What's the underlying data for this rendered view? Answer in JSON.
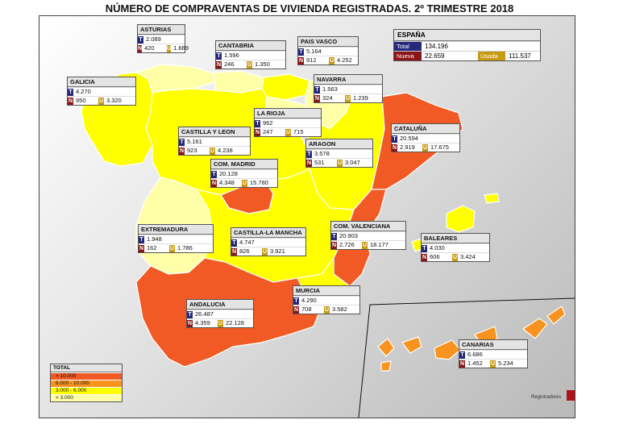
{
  "title": "NÚMERO DE COMPRAVENTAS DE VIVIENDA REGISTRADAS. 2º TRIMESTRE 2018",
  "colors": {
    "over_10000": "#f15a24",
    "range_6000_10000": "#f7931e",
    "range_3000_6000": "#ffff00",
    "under_3000": "#ffffa8",
    "tag_total": "#26297a",
    "tag_nueva": "#8a1416",
    "tag_usada": "#c79a12"
  },
  "tags": {
    "total": "T",
    "nueva": "N",
    "usada": "U"
  },
  "espana": {
    "name": "ESPAÑA",
    "total_label": "Total",
    "total": "134.196",
    "nueva_label": "Nueva",
    "nueva": "22.659",
    "usada_label": "Usada",
    "usada": "111.537"
  },
  "regions": [
    {
      "name": "ASTURIAS",
      "total": "2.089",
      "nueva": "420",
      "usada": "1.669",
      "category": "under_3000"
    },
    {
      "name": "CANTABRIA",
      "total": "1.596",
      "nueva": "246",
      "usada": "1.350",
      "category": "under_3000"
    },
    {
      "name": "PAIS VASCO",
      "total": "5.164",
      "nueva": "912",
      "usada": "4.252",
      "category": "range_3000_6000"
    },
    {
      "name": "NAVARRA",
      "total": "1.563",
      "nueva": "324",
      "usada": "1.239",
      "category": "under_3000"
    },
    {
      "name": "GALICIA",
      "total": "4.270",
      "nueva": "950",
      "usada": "3.320",
      "category": "range_3000_6000"
    },
    {
      "name": "LA RIOJA",
      "total": "962",
      "nueva": "247",
      "usada": "715",
      "category": "under_3000"
    },
    {
      "name": "CATALUÑA",
      "total": "20.594",
      "nueva": "2.919",
      "usada": "17.675",
      "category": "over_10000"
    },
    {
      "name": "CASTILLA Y LEON",
      "total": "5.161",
      "nueva": "923",
      "usada": "4.238",
      "category": "range_3000_6000"
    },
    {
      "name": "ARAGON",
      "total": "3.578",
      "nueva": "531",
      "usada": "3.047",
      "category": "range_3000_6000"
    },
    {
      "name": "COM. MADRID",
      "total": "20.128",
      "nueva": "4.348",
      "usada": "15.780",
      "category": "over_10000"
    },
    {
      "name": "COM. VALENCIANA",
      "total": "20.903",
      "nueva": "2.726",
      "usada": "18.177",
      "category": "over_10000"
    },
    {
      "name": "EXTREMADURA",
      "total": "1.948",
      "nueva": "162",
      "usada": "1.786",
      "category": "under_3000"
    },
    {
      "name": "CASTILLA-LA MANCHA",
      "total": "4.747",
      "nueva": "826",
      "usada": "3.921",
      "category": "range_3000_6000"
    },
    {
      "name": "BALEARES",
      "total": "4.030",
      "nueva": "606",
      "usada": "3.424",
      "category": "range_3000_6000"
    },
    {
      "name": "MURCIA",
      "total": "4.290",
      "nueva": "708",
      "usada": "3.582",
      "category": "range_3000_6000"
    },
    {
      "name": "ANDALUCIA",
      "total": "26.487",
      "nueva": "4.359",
      "usada": "22.128",
      "category": "over_10000"
    },
    {
      "name": "CANARIAS",
      "total": "6.686",
      "nueva": "1.452",
      "usada": "5.234",
      "category": "range_6000_10000"
    }
  ],
  "legend": {
    "title": "TOTAL",
    "items": [
      {
        "label": "> 10.000",
        "category": "over_10000"
      },
      {
        "label": "6.000 - 10.000",
        "category": "range_6000_10000"
      },
      {
        "label": "3.000 - 6.000",
        "category": "range_3000_6000"
      },
      {
        "label": "< 3.000",
        "category": "under_3000"
      }
    ]
  },
  "logo": {
    "text": "Registradores"
  }
}
